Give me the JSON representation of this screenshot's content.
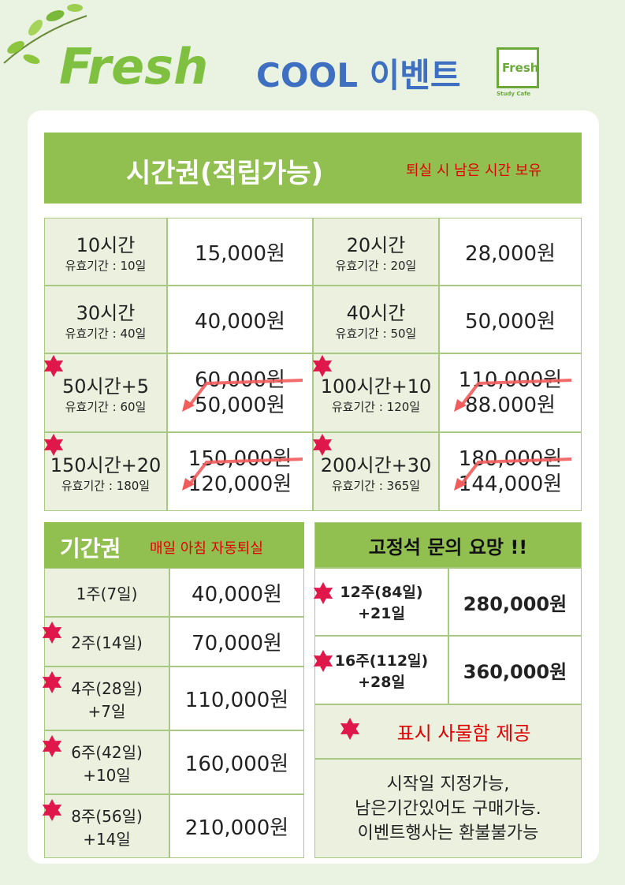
{
  "header": {
    "brand": "Fresh",
    "title": "COOL 이벤트",
    "logo": "Fresh",
    "logo_caption": "Study Cafe"
  },
  "hourly": {
    "title": "시간권(적립가능)",
    "note": "퇴실 시 남은 시간 보유",
    "items": [
      {
        "name": "10시간",
        "validity": "유효기간 : 10일",
        "price": "15,000원"
      },
      {
        "name": "20시간",
        "validity": "유효기간 : 20일",
        "price": "28,000원"
      },
      {
        "name": "30시간",
        "validity": "유효기간 : 40일",
        "price": "40,000원"
      },
      {
        "name": "40시간",
        "validity": "유효기간 : 50일",
        "price": "50,000원"
      },
      {
        "name": "50시간+5",
        "validity": "유효기간 : 60일",
        "old_price": "60,000원",
        "price": "50,000원",
        "star": true
      },
      {
        "name": "100시간+10",
        "validity": "유효기간 : 120일",
        "old_price": "110,000원",
        "price": "88.000원",
        "star": true
      },
      {
        "name": "150시간+20",
        "validity": "유효기간 : 180일",
        "old_price": "150,000원",
        "price": "120,000원",
        "star": true
      },
      {
        "name": "200시간+30",
        "validity": "유효기간 : 365일",
        "old_price": "180,000원",
        "price": "144,000원",
        "star": true
      }
    ]
  },
  "period": {
    "title": "기간권",
    "note": "매일 아침 자동퇴실",
    "items": [
      {
        "name": "1주(7일)",
        "price": "40,000원"
      },
      {
        "name": "2주(14일)",
        "price": "70,000원",
        "star": true
      },
      {
        "name": "4주(28일)",
        "bonus": "+7일",
        "price": "110,000원",
        "star": true
      },
      {
        "name": "6주(42일)",
        "bonus": "+10일",
        "price": "160,000원",
        "star": true
      },
      {
        "name": "8주(56일)",
        "bonus": "+14일",
        "price": "210,000원",
        "star": true
      }
    ]
  },
  "fixed": {
    "title": "고정석 문의 요망 !!",
    "items": [
      {
        "name": "12주(84일)",
        "bonus": "+21일",
        "price": "280,000원",
        "star": true
      },
      {
        "name": "16주(112일)",
        "bonus": "+28일",
        "price": "360,000원",
        "star": true
      }
    ],
    "legend": "표시 사물함 제공",
    "notes": [
      "시작일 지정가능,",
      "남은기간있어도 구매가능.",
      "이벤트행사는 환불불가능"
    ]
  }
}
